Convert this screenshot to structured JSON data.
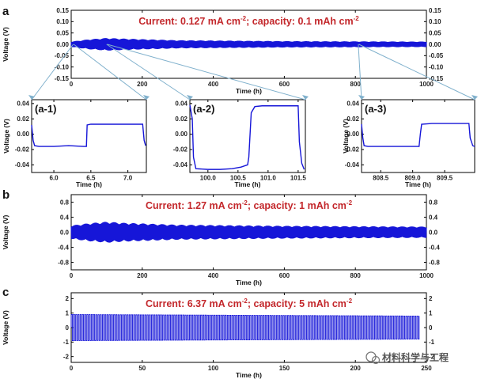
{
  "panel_labels": {
    "a": "a",
    "b": "b",
    "c": "c"
  },
  "watermark": {
    "text": "材料科学与工程"
  },
  "chart_data": [
    {
      "id": "a",
      "type": "line",
      "title": "",
      "annotation": {
        "prefix": "Current: 0.127 mA cm",
        "superscript": "-2",
        "suffix": "; capacity: 0.1 mAh cm",
        "superscript2": "-2"
      },
      "xlabel": "Time (h)",
      "ylabel": "Voltage (V)",
      "xlim": [
        0,
        1000
      ],
      "ylim": [
        -0.15,
        0.15
      ],
      "xticks": [
        "0",
        "200",
        "400",
        "600",
        "800",
        "1000"
      ],
      "xtick_values": [
        0,
        200,
        400,
        600,
        800,
        1000
      ],
      "yticks": [
        "-0.15",
        "-0.10",
        "-0.05",
        "0.00",
        "0.05",
        "0.10",
        "0.15"
      ],
      "ytick_values": [
        -0.15,
        -0.1,
        -0.05,
        0,
        0.05,
        0.1,
        0.15
      ],
      "series": [
        {
          "color": "#1616d8",
          "envelope": [
            [
              0,
              0.012
            ],
            [
              50,
              0.022
            ],
            [
              100,
              0.028
            ],
            [
              150,
              0.025
            ],
            [
              300,
              0.018
            ],
            [
              600,
              0.014
            ],
            [
              1000,
              0.012
            ]
          ]
        }
      ],
      "zoom_windows_x": [
        [
          5.7,
          7.2
        ],
        [
          99.6,
          101.6
        ],
        [
          808.2,
          809.9
        ]
      ]
    },
    {
      "id": "a-1",
      "type": "line",
      "title": "",
      "label": "(a-1)",
      "xlabel": "Time (h)",
      "ylabel": "Voltage (V)",
      "xlim": [
        5.7,
        7.25
      ],
      "ylim": [
        -0.05,
        0.045
      ],
      "xticks": [
        "6.0",
        "6.5",
        "7.0"
      ],
      "xtick_values": [
        6.0,
        6.5,
        7.0
      ],
      "yticks": [
        "-0.04",
        "-0.02",
        "0.00",
        "0.02",
        "0.04"
      ],
      "ytick_values": [
        -0.04,
        -0.02,
        0,
        0.02,
        0.04
      ],
      "series": [
        {
          "color": "#1616d8",
          "x": [
            5.7,
            5.72,
            5.74,
            5.8,
            6.0,
            6.2,
            6.4,
            6.44,
            6.45,
            6.5,
            6.8,
            7.0,
            7.2,
            7.22,
            7.24
          ],
          "y": [
            0.012,
            -0.008,
            -0.015,
            -0.016,
            -0.016,
            -0.015,
            -0.016,
            -0.016,
            0.012,
            0.013,
            0.013,
            0.013,
            0.013,
            -0.008,
            -0.015
          ]
        }
      ]
    },
    {
      "id": "a-2",
      "type": "line",
      "title": "",
      "label": "(a-2)",
      "xlabel": "Time (h)",
      "ylabel": "",
      "xlim": [
        99.7,
        101.62
      ],
      "ylim": [
        -0.05,
        0.045
      ],
      "xticks": [
        "100.0",
        "100.5",
        "101.0",
        "101.5"
      ],
      "xtick_values": [
        100.0,
        100.5,
        101.0,
        101.5
      ],
      "yticks": [
        "-0.04",
        "-0.02",
        "0.00",
        "0.02",
        "0.04"
      ],
      "ytick_values": [
        -0.04,
        -0.02,
        0,
        0.02,
        0.04
      ],
      "series": [
        {
          "color": "#1616d8",
          "x": [
            99.7,
            99.74,
            99.76,
            99.8,
            100.0,
            100.2,
            100.4,
            100.55,
            100.66,
            100.68,
            100.72,
            100.78,
            100.9,
            101.1,
            101.3,
            101.5,
            101.52,
            101.56,
            101.6
          ],
          "y": [
            0.038,
            0.02,
            -0.03,
            -0.045,
            -0.046,
            -0.046,
            -0.045,
            -0.043,
            -0.04,
            -0.03,
            0.028,
            0.036,
            0.037,
            0.037,
            0.037,
            0.037,
            -0.01,
            -0.038,
            -0.046
          ]
        }
      ]
    },
    {
      "id": "a-3",
      "type": "line",
      "title": "",
      "label": "(a-3)",
      "xlabel": "Time (h)",
      "ylabel": "Voltage (V)",
      "xlim": [
        808.2,
        809.97
      ],
      "ylim": [
        -0.05,
        0.045
      ],
      "xticks": [
        "808.5",
        "809.0",
        "809.5"
      ],
      "xtick_values": [
        808.5,
        809.0,
        809.5
      ],
      "yticks": [
        "-0.04",
        "-0.02",
        "0.00",
        "0.02",
        "0.04"
      ],
      "ytick_values": [
        -0.04,
        -0.02,
        0,
        0.02,
        0.04
      ],
      "series": [
        {
          "color": "#1616d8",
          "x": [
            808.2,
            808.22,
            808.24,
            808.3,
            808.6,
            808.9,
            809.1,
            809.12,
            809.14,
            809.3,
            809.6,
            809.88,
            809.9,
            809.94,
            809.97
          ],
          "y": [
            0.013,
            -0.005,
            -0.015,
            -0.016,
            -0.016,
            -0.016,
            -0.016,
            0.0,
            0.013,
            0.014,
            0.014,
            0.014,
            -0.005,
            -0.015,
            -0.016
          ]
        }
      ]
    },
    {
      "id": "b",
      "type": "line",
      "title": "",
      "annotation": {
        "prefix": "Current: 1.27 mA cm",
        "superscript": "-2",
        "suffix": "; capacity: 1 mAh cm",
        "superscript2": "-2"
      },
      "xlabel": "Time (h)",
      "ylabel": "Voltage (V)",
      "xlim": [
        0,
        1000
      ],
      "ylim": [
        -1.0,
        1.0
      ],
      "xticks": [
        "0",
        "200",
        "400",
        "600",
        "800",
        "1000"
      ],
      "xtick_values": [
        0,
        200,
        400,
        600,
        800,
        1000
      ],
      "yticks": [
        "-0.8",
        "-0.4",
        "0.0",
        "0.4",
        "0.8"
      ],
      "ytick_values": [
        -0.8,
        -0.4,
        0,
        0.4,
        0.8
      ],
      "series": [
        {
          "color": "#1616d8",
          "envelope": [
            [
              0,
              0.18
            ],
            [
              50,
              0.24
            ],
            [
              100,
              0.28
            ],
            [
              150,
              0.25
            ],
            [
              300,
              0.2
            ],
            [
              600,
              0.17
            ],
            [
              1000,
              0.15
            ]
          ]
        }
      ]
    },
    {
      "id": "c",
      "type": "line",
      "title": "",
      "annotation": {
        "prefix": "Current: 6.37 mA cm",
        "superscript": "-2",
        "suffix": "; capacity: 5 mAh cm",
        "superscript2": "-2"
      },
      "xlabel": "Time (h)",
      "ylabel": "Voltage (V)",
      "xlim": [
        0,
        250
      ],
      "ylim": [
        -2.4,
        2.4
      ],
      "xticks": [
        "0",
        "50",
        "100",
        "150",
        "200",
        "250"
      ],
      "xtick_values": [
        0,
        50,
        100,
        150,
        200,
        250
      ],
      "yticks": [
        "-2",
        "-1",
        "0",
        "1",
        "2"
      ],
      "ytick_values": [
        -2,
        -1,
        0,
        1,
        2
      ],
      "series": [
        {
          "color": "#1616d8",
          "square_wave": {
            "amplitude": 0.9,
            "period_h": 1.57,
            "x_start": 0,
            "x_end": 245
          }
        }
      ]
    }
  ]
}
